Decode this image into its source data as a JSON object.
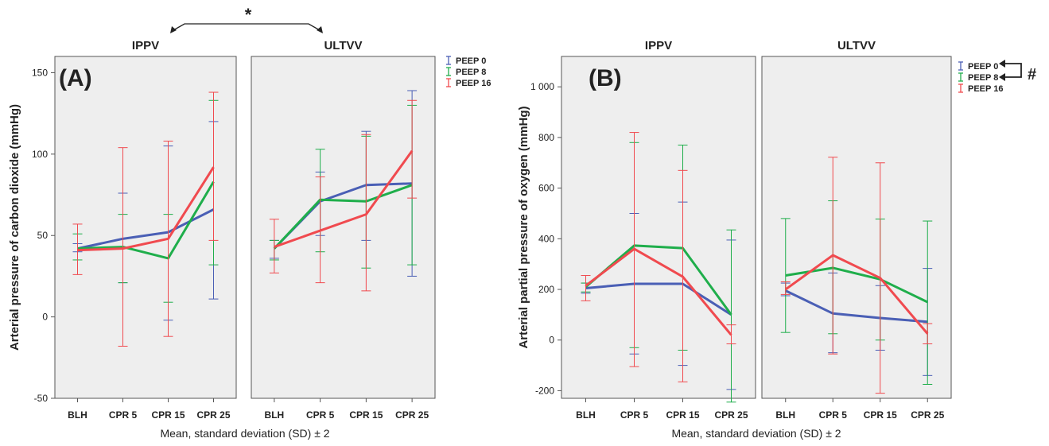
{
  "colors": {
    "peep0": "#4a5fb5",
    "peep8": "#1fae4b",
    "peep16": "#f04a4f",
    "panel_bg": "#eeeeee"
  },
  "figure": {
    "significance_marker_a": "*",
    "significance_marker_b": "#"
  },
  "chart_data": [
    {
      "type": "line",
      "panel_label": "(A)",
      "ylabel": "Arterial pressure of carbon dioxide (mmHg)",
      "xlabel": "Mean, standard deviation (SD) ± 2",
      "ylim": [
        -50,
        160
      ],
      "yticks": [
        -50,
        0,
        50,
        100,
        150
      ],
      "ytick_labels": [
        "-50",
        "0",
        "50",
        "100",
        "150"
      ],
      "categories": [
        "BLH",
        "CPR 5",
        "CPR 15",
        "CPR 25"
      ],
      "facets": [
        "IPPV",
        "ULTVV"
      ],
      "legend": [
        "PEEP 0",
        "PEEP 8",
        "PEEP 16"
      ],
      "legend_position": "right",
      "grid": false,
      "series": [
        {
          "name": "PEEP 0",
          "facet": "IPPV",
          "values": [
            42,
            48,
            52,
            66
          ],
          "err_low": [
            40,
            21,
            -2,
            11
          ],
          "err_high": [
            45,
            76,
            105,
            120
          ]
        },
        {
          "name": "PEEP 8",
          "facet": "IPPV",
          "values": [
            42,
            43,
            36,
            83
          ],
          "err_low": [
            35,
            21,
            9,
            32
          ],
          "err_high": [
            51,
            63,
            63,
            133
          ]
        },
        {
          "name": "PEEP 16",
          "facet": "IPPV",
          "values": [
            41,
            42,
            48,
            92
          ],
          "err_low": [
            26,
            -18,
            -12,
            47
          ],
          "err_high": [
            57,
            104,
            108,
            138
          ]
        },
        {
          "name": "PEEP 0",
          "facet": "ULTVV",
          "values": [
            42,
            71,
            81,
            82
          ],
          "err_low": [
            36,
            50,
            47,
            25
          ],
          "err_high": [
            47,
            89,
            114,
            139
          ]
        },
        {
          "name": "PEEP 8",
          "facet": "ULTVV",
          "values": [
            42,
            72,
            71,
            81
          ],
          "err_low": [
            35,
            40,
            30,
            32
          ],
          "err_high": [
            47,
            103,
            111,
            130
          ]
        },
        {
          "name": "PEEP 16",
          "facet": "ULTVV",
          "values": [
            43,
            53,
            63,
            102
          ],
          "err_low": [
            27,
            21,
            16,
            73
          ],
          "err_high": [
            60,
            86,
            112,
            133
          ]
        }
      ]
    },
    {
      "type": "line",
      "panel_label": "(B)",
      "ylabel": "Arterial partial pressure of oxygen (mmHg)",
      "xlabel": "Mean, standard deviation (SD) ± 2",
      "ylim": [
        -230,
        1120
      ],
      "yticks": [
        -200,
        0,
        200,
        400,
        600,
        800,
        1000
      ],
      "ytick_labels": [
        "-200",
        "0",
        "200",
        "400",
        "600",
        "800",
        "1 000"
      ],
      "categories": [
        "BLH",
        "CPR 5",
        "CPR 15",
        "CPR 25"
      ],
      "facets": [
        "IPPV",
        "ULTVV"
      ],
      "legend": [
        "PEEP 0",
        "PEEP 8",
        "PEEP 16"
      ],
      "legend_position": "right",
      "grid": false,
      "series": [
        {
          "name": "PEEP 0",
          "facet": "IPPV",
          "values": [
            205,
            222,
            222,
            100
          ],
          "err_low": [
            185,
            -55,
            -100,
            -195
          ],
          "err_high": [
            225,
            500,
            545,
            395
          ]
        },
        {
          "name": "PEEP 8",
          "facet": "IPPV",
          "values": [
            210,
            373,
            363,
            100
          ],
          "err_low": [
            190,
            -30,
            -40,
            -245
          ],
          "err_high": [
            225,
            780,
            770,
            435
          ]
        },
        {
          "name": "PEEP 16",
          "facet": "IPPV",
          "values": [
            215,
            360,
            250,
            20
          ],
          "err_low": [
            155,
            -105,
            -165,
            -15
          ],
          "err_high": [
            255,
            820,
            670,
            60
          ]
        },
        {
          "name": "PEEP 0",
          "facet": "ULTVV",
          "values": [
            195,
            105,
            87,
            72
          ],
          "err_low": [
            175,
            -50,
            -40,
            -140
          ],
          "err_high": [
            225,
            265,
            215,
            283
          ]
        },
        {
          "name": "PEEP 8",
          "facet": "ULTVV",
          "values": [
            255,
            285,
            240,
            150
          ],
          "err_low": [
            30,
            25,
            0,
            -175
          ],
          "err_high": [
            480,
            550,
            478,
            470
          ]
        },
        {
          "name": "PEEP 16",
          "facet": "ULTVV",
          "values": [
            200,
            335,
            245,
            25
          ],
          "err_low": [
            180,
            -55,
            -210,
            -15
          ],
          "err_high": [
            230,
            722,
            700,
            65
          ]
        }
      ]
    }
  ]
}
